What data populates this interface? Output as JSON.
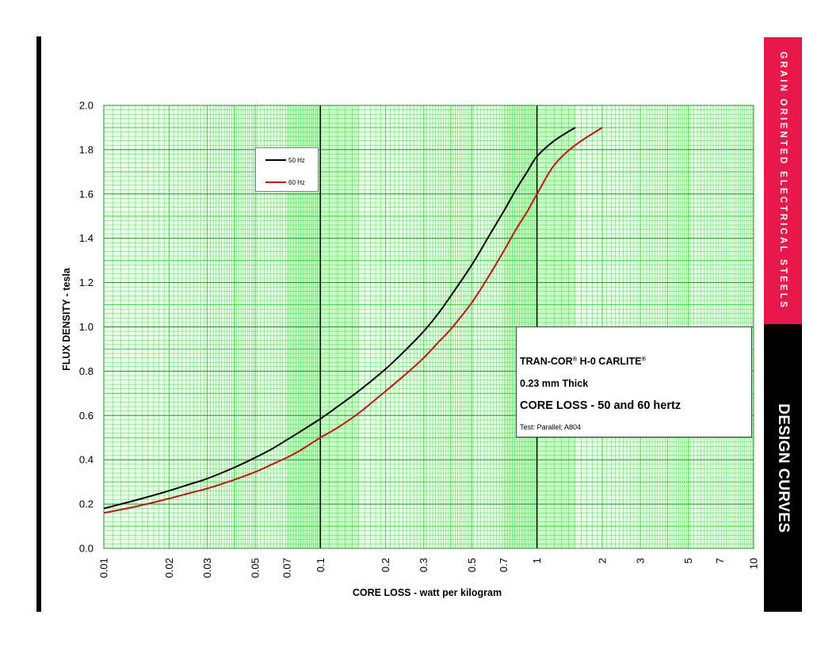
{
  "side_labels": {
    "category": "GRAIN ORIENTED ELECTRICAL STEELS",
    "section": "DESIGN CURVES"
  },
  "info_box": {
    "title": "TRAN-COR",
    "title_suffix": " H-0 CARLITE",
    "reg_mark": "®",
    "thickness": "0.23 mm Thick",
    "main": "CORE LOSS - 50 and 60 hertz",
    "test": "Test: Parallel; A804"
  },
  "colors": {
    "grid_minor": "#3ad83a",
    "grid_major": "#000000",
    "background": "#eaffea",
    "band": "#a9f5a9",
    "series_50": "#000000",
    "series_60": "#c0150f",
    "accent_red": "#e8194a"
  },
  "chart_data": {
    "type": "line",
    "title": "",
    "xlabel": "CORE LOSS - watt per kilogram",
    "ylabel": "FLUX DENSITY - tesla",
    "x_scale": "log",
    "xlim": [
      0.01,
      10
    ],
    "ylim": [
      0,
      2.0
    ],
    "grid": true,
    "legend_position": "upper-left",
    "x_tick_labels": [
      "0.01",
      "0.02",
      "0.03",
      "0.05",
      "0.07",
      "0.1",
      "0.2",
      "0.3",
      "0.5",
      "0.7",
      "1",
      "2",
      "3",
      "5",
      "7",
      "10"
    ],
    "y_tick_labels": [
      "0.0",
      "0.2",
      "0.4",
      "0.6",
      "0.8",
      "1.0",
      "1.2",
      "1.4",
      "1.6",
      "1.8",
      "2.0"
    ],
    "series": [
      {
        "name": "50 Hz",
        "x": [
          0.01,
          0.012,
          0.015,
          0.02,
          0.025,
          0.03,
          0.04,
          0.05,
          0.06,
          0.07,
          0.08,
          0.1,
          0.12,
          0.15,
          0.2,
          0.25,
          0.3,
          0.35,
          0.4,
          0.5,
          0.6,
          0.7,
          0.8,
          0.9,
          1.0,
          1.2,
          1.5
        ],
        "y": [
          0.18,
          0.2,
          0.225,
          0.26,
          0.29,
          0.315,
          0.365,
          0.41,
          0.45,
          0.49,
          0.525,
          0.585,
          0.64,
          0.71,
          0.81,
          0.9,
          0.98,
          1.06,
          1.14,
          1.28,
          1.41,
          1.52,
          1.62,
          1.7,
          1.77,
          1.84,
          1.9
        ]
      },
      {
        "name": "60 Hz",
        "x": [
          0.01,
          0.012,
          0.015,
          0.02,
          0.025,
          0.03,
          0.04,
          0.05,
          0.06,
          0.07,
          0.08,
          0.1,
          0.12,
          0.15,
          0.2,
          0.25,
          0.3,
          0.35,
          0.4,
          0.5,
          0.6,
          0.7,
          0.8,
          0.9,
          1.0,
          1.2,
          1.5,
          2.0
        ],
        "y": [
          0.16,
          0.175,
          0.195,
          0.225,
          0.25,
          0.27,
          0.31,
          0.345,
          0.38,
          0.41,
          0.44,
          0.5,
          0.545,
          0.61,
          0.71,
          0.79,
          0.86,
          0.93,
          0.99,
          1.11,
          1.23,
          1.34,
          1.44,
          1.52,
          1.6,
          1.73,
          1.82,
          1.9
        ]
      }
    ]
  }
}
